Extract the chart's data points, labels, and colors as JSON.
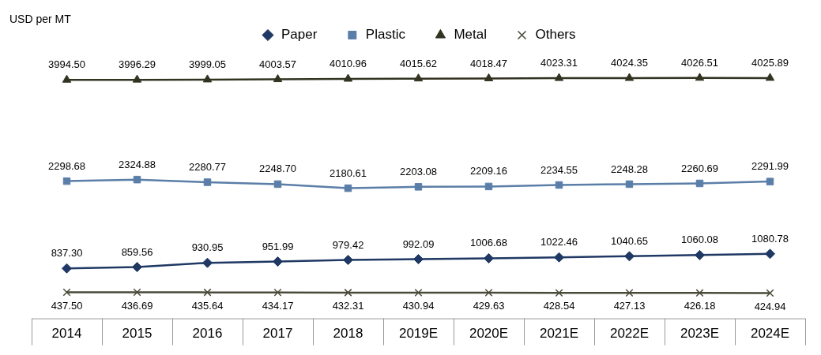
{
  "chart_data": {
    "type": "line",
    "ylabel": "USD per MT",
    "categories": [
      "2014",
      "2015",
      "2016",
      "2017",
      "2018",
      "2019E",
      "2020E",
      "2021E",
      "2022E",
      "2023E",
      "2024E"
    ],
    "series": [
      {
        "name": "Paper",
        "color": "#1f3864",
        "marker": "diamond",
        "values": [
          837.3,
          859.56,
          930.95,
          951.99,
          979.42,
          992.09,
          1006.68,
          1022.46,
          1040.65,
          1060.08,
          1080.78
        ],
        "value_labels": [
          "837.30",
          "859.56",
          "930.95",
          "951.99",
          "979.42",
          "992.09",
          "1006.68",
          "1022.46",
          "1040.65",
          "1060.08",
          "1080.78"
        ]
      },
      {
        "name": "Plastic",
        "color": "#5b7ea8",
        "marker": "square",
        "values": [
          2298.68,
          2324.88,
          2280.77,
          2248.7,
          2180.61,
          2203.08,
          2209.16,
          2234.55,
          2248.28,
          2260.69,
          2291.99
        ],
        "value_labels": [
          "2298.68",
          "2324.88",
          "2280.77",
          "2248.70",
          "2180.61",
          "2203.08",
          "2209.16",
          "2234.55",
          "2248.28",
          "2260.69",
          "2291.99"
        ]
      },
      {
        "name": "Metal",
        "color": "#333322",
        "marker": "triangle",
        "values": [
          3994.5,
          3996.29,
          3999.05,
          4003.57,
          4010.96,
          4015.62,
          4018.47,
          4023.31,
          4024.35,
          4026.51,
          4025.89
        ],
        "value_labels": [
          "3994.50",
          "3996.29",
          "3999.05",
          "4003.57",
          "4010.96",
          "4015.62",
          "4018.47",
          "4023.31",
          "4024.35",
          "4026.51",
          "4025.89"
        ]
      },
      {
        "name": "Others",
        "color": "#4a4a3a",
        "marker": "cross",
        "values": [
          437.5,
          436.69,
          435.64,
          434.17,
          432.31,
          430.94,
          429.63,
          428.54,
          427.13,
          426.18,
          424.94
        ],
        "value_labels": [
          "437.50",
          "436.69",
          "435.64",
          "434.17",
          "432.31",
          "430.94",
          "429.63",
          "428.54",
          "427.13",
          "426.18",
          "424.94"
        ]
      }
    ],
    "tick_labels": "x",
    "legend": "top",
    "grid": false,
    "line_style": "solid"
  }
}
